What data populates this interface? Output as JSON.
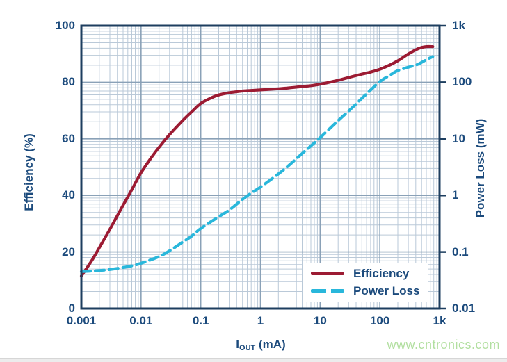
{
  "page": {
    "watermark": "www.cntronics.com"
  },
  "colors": {
    "axis_frame": "#1d3e5f",
    "grid_major": "#8aa1b7",
    "grid_minor": "#bac9d8",
    "text_navy": "#1b4a7c",
    "efficiency_line": "#9c1b33",
    "power_loss_line": "#29b7db",
    "watermark_green": "#b2dfa0"
  },
  "chart_data": {
    "type": "line",
    "title": "",
    "grid": "log-log major and minor gridlines, both axes",
    "x_axis": {
      "label_prefix": "I",
      "label_sub": "OUT",
      "label_suffix": " (mA)",
      "scale": "log",
      "range": [
        0.001,
        1000
      ],
      "ticks": [
        "0.001",
        "0.01",
        "0.1",
        "1",
        "10",
        "100",
        "1k"
      ]
    },
    "y_left_axis": {
      "label": "Efficiency (%)",
      "scale": "linear",
      "range": [
        0,
        100
      ],
      "ticks": [
        "100",
        "80",
        "60",
        "40",
        "20",
        "0"
      ]
    },
    "y_right_axis": {
      "label": "Power Loss (mW)",
      "scale": "log",
      "range": [
        0.01,
        1000
      ],
      "ticks": [
        "1k",
        "100",
        "10",
        "1",
        "0.1",
        "0.01"
      ]
    },
    "legend": {
      "position": "bottom-right",
      "items": [
        {
          "label": "Efficiency",
          "style": "solid",
          "color": "#9c1b33"
        },
        {
          "label": "Power Loss",
          "style": "dashed",
          "color": "#29b7db"
        }
      ]
    },
    "series": [
      {
        "name": "Efficiency",
        "axis": "left",
        "units": "%",
        "style": "solid",
        "color": "#9c1b33",
        "points": [
          [
            0.001,
            11.5
          ],
          [
            0.0015,
            17
          ],
          [
            0.002,
            21.5
          ],
          [
            0.003,
            28
          ],
          [
            0.005,
            36.5
          ],
          [
            0.007,
            42
          ],
          [
            0.01,
            48
          ],
          [
            0.015,
            53.5
          ],
          [
            0.02,
            57
          ],
          [
            0.03,
            61.5
          ],
          [
            0.05,
            66.5
          ],
          [
            0.07,
            69.5
          ],
          [
            0.1,
            72.5
          ],
          [
            0.15,
            74.5
          ],
          [
            0.2,
            75.5
          ],
          [
            0.3,
            76.3
          ],
          [
            0.5,
            76.9
          ],
          [
            0.7,
            77.1
          ],
          [
            1,
            77.3
          ],
          [
            2,
            77.7
          ],
          [
            3,
            78
          ],
          [
            5,
            78.5
          ],
          [
            7,
            78.8
          ],
          [
            10,
            79.3
          ],
          [
            20,
            80.7
          ],
          [
            30,
            81.7
          ],
          [
            50,
            82.9
          ],
          [
            70,
            83.6
          ],
          [
            100,
            84.6
          ],
          [
            150,
            86.2
          ],
          [
            200,
            87.6
          ],
          [
            300,
            90
          ],
          [
            400,
            91.5
          ],
          [
            500,
            92.3
          ],
          [
            600,
            92.6
          ],
          [
            770,
            92.6
          ]
        ]
      },
      {
        "name": "Power Loss",
        "axis": "right",
        "units": "mW",
        "style": "dashed",
        "color": "#29b7db",
        "points": [
          [
            0.001,
            0.045
          ],
          [
            0.002,
            0.047
          ],
          [
            0.003,
            0.049
          ],
          [
            0.005,
            0.053
          ],
          [
            0.007,
            0.057
          ],
          [
            0.01,
            0.063
          ],
          [
            0.02,
            0.083
          ],
          [
            0.03,
            0.105
          ],
          [
            0.05,
            0.15
          ],
          [
            0.07,
            0.19
          ],
          [
            0.1,
            0.26
          ],
          [
            0.2,
            0.42
          ],
          [
            0.3,
            0.55
          ],
          [
            0.5,
            0.85
          ],
          [
            0.7,
            1.1
          ],
          [
            1,
            1.4
          ],
          [
            2,
            2.4
          ],
          [
            3,
            3.4
          ],
          [
            5,
            5.5
          ],
          [
            7,
            7.5
          ],
          [
            10,
            10.5
          ],
          [
            20,
            21
          ],
          [
            30,
            31
          ],
          [
            50,
            52
          ],
          [
            70,
            73
          ],
          [
            100,
            103
          ],
          [
            150,
            135
          ],
          [
            200,
            161
          ],
          [
            300,
            185
          ],
          [
            430,
            207
          ],
          [
            600,
            250
          ],
          [
            770,
            285
          ]
        ]
      }
    ]
  }
}
